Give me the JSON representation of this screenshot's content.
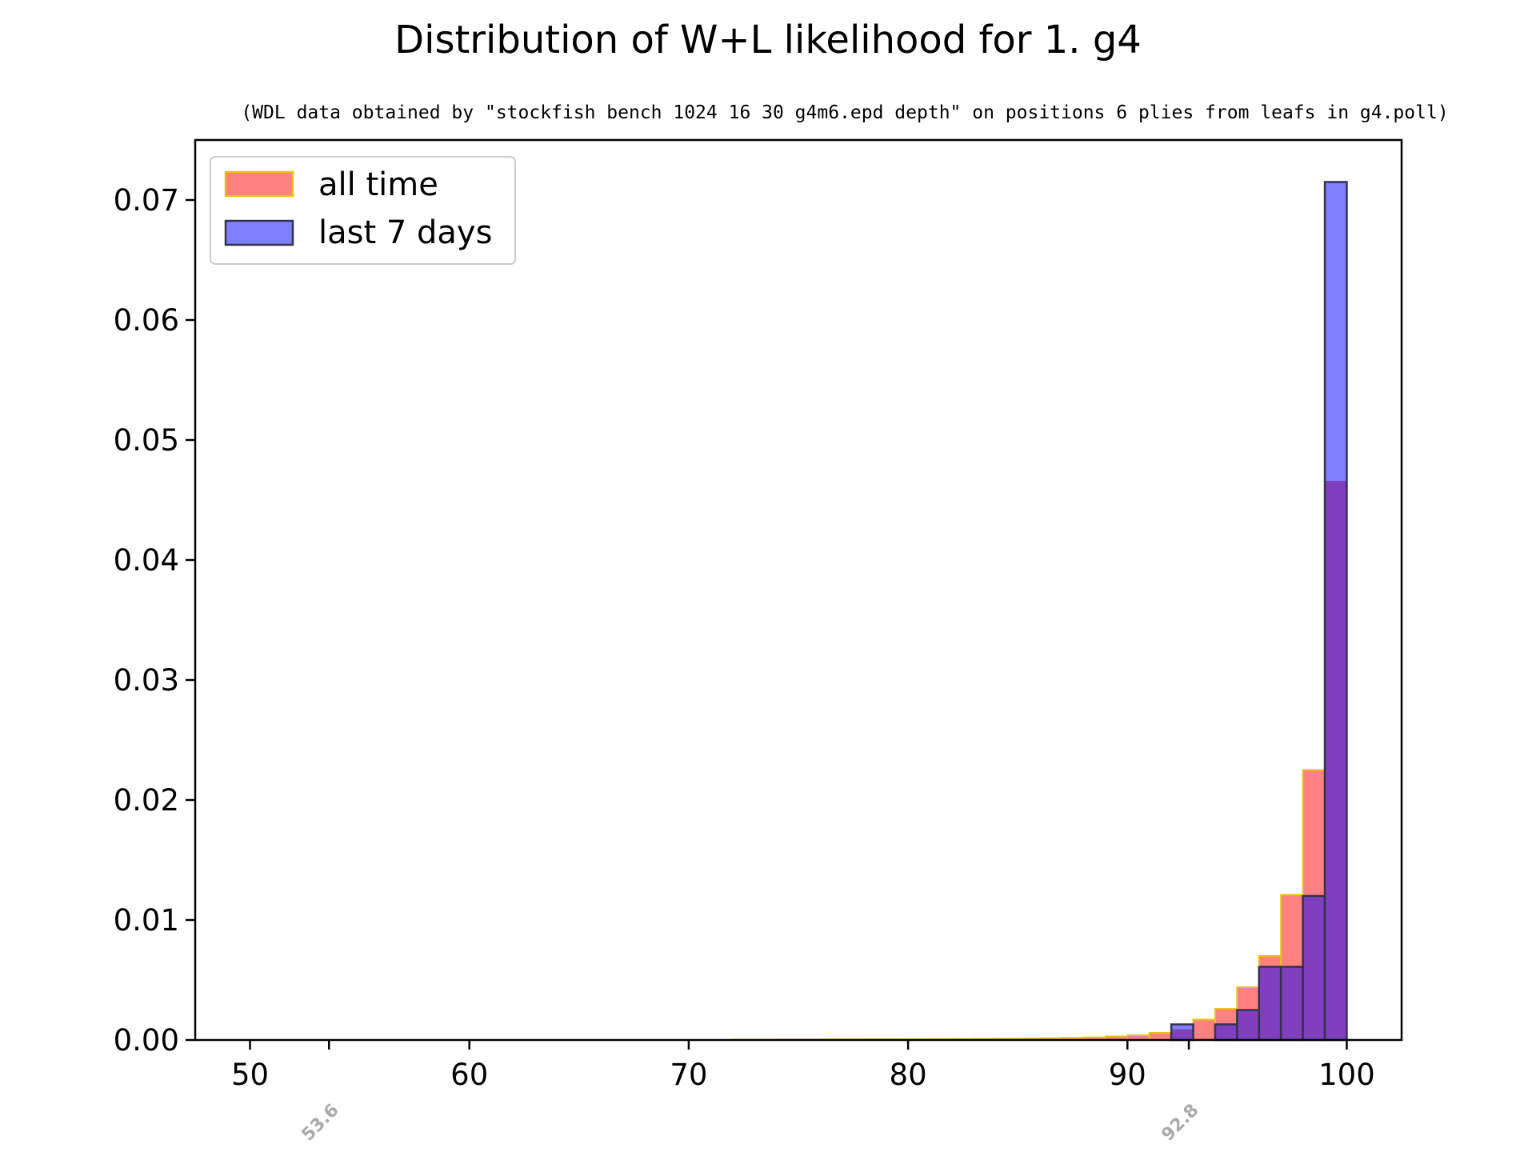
{
  "chart_data": {
    "type": "bar",
    "title": "Distribution of W+L likelihood for 1. g4",
    "subtitle": "(WDL data obtained by \"stockfish bench 1024 16 30 g4m6.epd depth\" on positions 6 plies from leafs in g4.poll)",
    "xlabel": "",
    "ylabel": "",
    "xlim": [
      47.5,
      102.5
    ],
    "ylim": [
      0,
      0.075
    ],
    "bin_width": 1.0,
    "xticks": [
      50,
      60,
      70,
      80,
      90,
      100
    ],
    "xtick_labels": [
      "50",
      "60",
      "70",
      "80",
      "90",
      "100"
    ],
    "yticks": [
      0.0,
      0.01,
      0.02,
      0.03,
      0.04,
      0.05,
      0.06,
      0.07
    ],
    "ytick_labels": [
      "0.00",
      "0.01",
      "0.02",
      "0.03",
      "0.04",
      "0.05",
      "0.06",
      "0.07"
    ],
    "minor_ticks": [
      53.6,
      92.8
    ],
    "annotations": [
      "53.6",
      "92.8"
    ],
    "legend_position": "upper-left",
    "series": [
      {
        "name": "all time",
        "fill": "#ff8080",
        "edge": "#e6c21a",
        "bins_start": [
          72,
          73,
          74,
          75,
          76,
          77,
          78,
          79,
          80,
          81,
          82,
          83,
          84,
          85,
          86,
          87,
          88,
          89,
          90,
          91,
          92,
          93,
          94,
          95,
          96,
          97,
          98,
          99
        ],
        "values": [
          3e-05,
          3e-05,
          4e-05,
          4e-05,
          5e-05,
          5e-05,
          6e-05,
          6e-05,
          7e-05,
          8e-05,
          9e-05,
          0.0001,
          0.00011,
          0.00013,
          0.00015,
          0.00018,
          0.00022,
          0.0003,
          0.0004,
          0.0006,
          0.0009,
          0.0017,
          0.0026,
          0.0044,
          0.007,
          0.0121,
          0.0225,
          0.0466
        ]
      },
      {
        "name": "last 7 days",
        "fill": "#8080ff",
        "edge": "#33334d",
        "bins_start": [
          92,
          93,
          94,
          95,
          96,
          97,
          98,
          99
        ],
        "values": [
          0.0013,
          0.0,
          0.0013,
          0.0025,
          0.0061,
          0.0061,
          0.012,
          0.0715
        ]
      }
    ],
    "overlap_fill": "#7f3fbf"
  }
}
